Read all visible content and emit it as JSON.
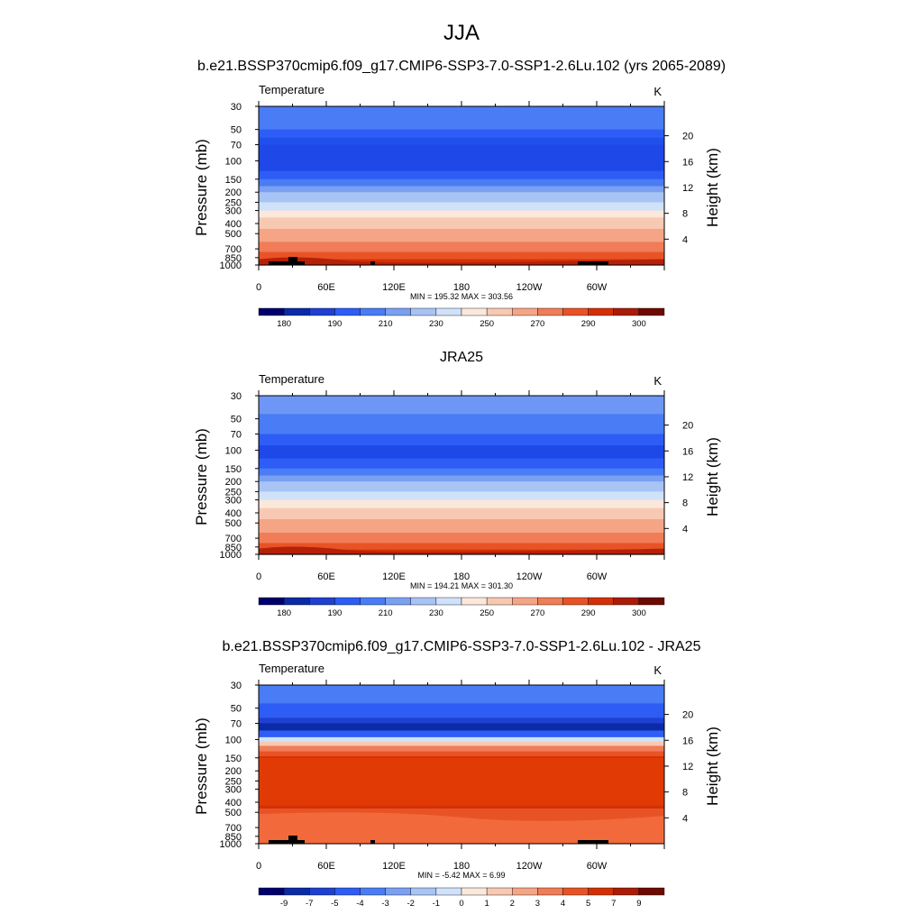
{
  "figure": {
    "season": "JJA",
    "panels": [
      {
        "title": "b.e21.BSSP370cmip6.f09_g17.CMIP6-SSP3-7.0-SSP1-2.6Lu.102 (yrs 2065-2089)",
        "left_label": "Temperature",
        "units": "K",
        "stats": "MIN = 195.32  MAX = 303.56",
        "kind": "model"
      },
      {
        "title": "JRA25",
        "left_label": "Temperature",
        "units": "K",
        "stats": "MIN = 194.21  MAX = 301.30",
        "kind": "obs"
      },
      {
        "title": "b.e21.BSSP370cmip6.f09_g17.CMIP6-SSP3-7.0-SSP1-2.6Lu.102 - JRA25",
        "left_label": "Temperature",
        "units": "K",
        "stats": "MIN =  -5.42  MAX =   6.99",
        "kind": "diff"
      }
    ]
  },
  "chart_data": [
    {
      "type": "heatmap",
      "title": "b.e21.BSSP370cmip6.f09_g17.CMIP6-SSP3-7.0-SSP1-2.6Lu.102 (yrs 2065-2089)",
      "variable": "Temperature",
      "units": "K",
      "xlabel": "",
      "ylabel": "Pressure (mb)",
      "ylabel_right": "Height (km)",
      "x_ticks": [
        "0",
        "60E",
        "120E",
        "180",
        "120W",
        "60W"
      ],
      "y_ticks": [
        "30",
        "50",
        "70",
        "100",
        "150",
        "200",
        "250",
        "300",
        "400",
        "500",
        "700",
        "850",
        "1000"
      ],
      "y_ticks_right": [
        "20",
        "16",
        "12",
        "8",
        "4"
      ],
      "ylim": [
        1000,
        30
      ],
      "colorbar": {
        "labels": [
          "180",
          "190",
          "210",
          "230",
          "250",
          "270",
          "290",
          "300"
        ],
        "colors": [
          "#00006c",
          "#0a2aa6",
          "#1f40d0",
          "#2d5df5",
          "#4a7cf5",
          "#7aa0f2",
          "#a8c4f5",
          "#cfe2fa",
          "#fbe8da",
          "#f8c9b2",
          "#f5a585",
          "#f07c58",
          "#e85326",
          "#d43005",
          "#a81c08",
          "#6e0a00"
        ]
      },
      "min": 195.32,
      "max": 303.56
    },
    {
      "type": "heatmap",
      "title": "JRA25",
      "variable": "Temperature",
      "units": "K",
      "xlabel": "",
      "ylabel": "Pressure (mb)",
      "ylabel_right": "Height (km)",
      "x_ticks": [
        "0",
        "60E",
        "120E",
        "180",
        "120W",
        "60W"
      ],
      "y_ticks": [
        "30",
        "50",
        "70",
        "100",
        "150",
        "200",
        "250",
        "300",
        "400",
        "500",
        "700",
        "850",
        "1000"
      ],
      "y_ticks_right": [
        "20",
        "16",
        "12",
        "8",
        "4"
      ],
      "ylim": [
        1000,
        30
      ],
      "colorbar": {
        "labels": [
          "180",
          "190",
          "210",
          "230",
          "250",
          "270",
          "290",
          "300"
        ],
        "colors": [
          "#00006c",
          "#0a2aa6",
          "#1f40d0",
          "#2d5df5",
          "#4a7cf5",
          "#7aa0f2",
          "#a8c4f5",
          "#cfe2fa",
          "#fbe8da",
          "#f8c9b2",
          "#f5a585",
          "#f07c58",
          "#e85326",
          "#d43005",
          "#a81c08",
          "#6e0a00"
        ]
      },
      "min": 194.21,
      "max": 301.3
    },
    {
      "type": "heatmap",
      "title": "b.e21.BSSP370cmip6.f09_g17.CMIP6-SSP3-7.0-SSP1-2.6Lu.102 - JRA25",
      "variable": "Temperature",
      "units": "K",
      "xlabel": "",
      "ylabel": "Pressure (mb)",
      "ylabel_right": "Height (km)",
      "x_ticks": [
        "0",
        "60E",
        "120E",
        "180",
        "120W",
        "60W"
      ],
      "y_ticks": [
        "30",
        "50",
        "70",
        "100",
        "150",
        "200",
        "250",
        "300",
        "400",
        "500",
        "700",
        "850",
        "1000"
      ],
      "y_ticks_right": [
        "20",
        "16",
        "12",
        "8",
        "4"
      ],
      "ylim": [
        1000,
        30
      ],
      "colorbar": {
        "labels": [
          "-9",
          "-7",
          "-5",
          "-4",
          "-3",
          "-2",
          "-1",
          "0",
          "1",
          "2",
          "3",
          "4",
          "5",
          "7",
          "9"
        ],
        "colors": [
          "#00006c",
          "#0a2aa6",
          "#1f40d0",
          "#2d5df5",
          "#4a7cf5",
          "#7aa0f2",
          "#a8c4f5",
          "#cfe2fa",
          "#fbe8da",
          "#f8c9b2",
          "#f5a585",
          "#f07c58",
          "#e85326",
          "#d43005",
          "#a81c08",
          "#6e0a00"
        ]
      },
      "min": -5.42,
      "max": 6.99
    }
  ]
}
